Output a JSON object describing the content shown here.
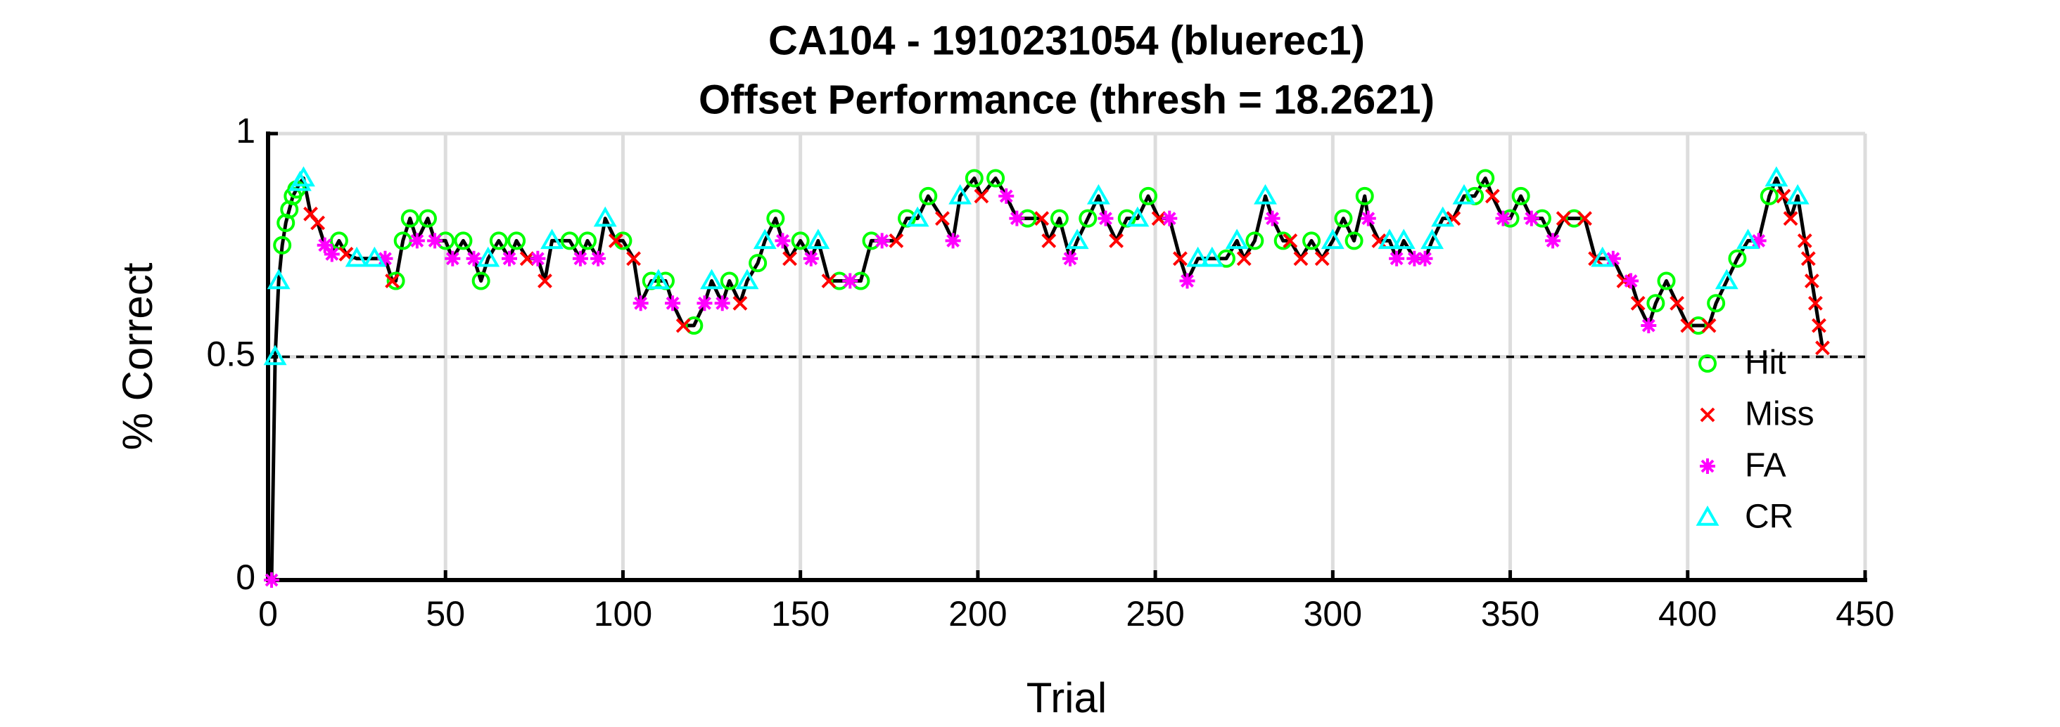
{
  "chart_data": {
    "type": "scatter",
    "title": "CA104 - 1910231054 (bluerec1)",
    "subtitle": "Offset Performance (thresh = 18.2621)",
    "x_label": "Trial",
    "y_label": "% Correct",
    "xlim": [
      0,
      450
    ],
    "xticks": [
      0,
      50,
      100,
      150,
      200,
      250,
      300,
      350,
      400,
      450
    ],
    "ylim": [
      0,
      1
    ],
    "yticks": [
      0,
      0.5,
      1
    ],
    "grid": true,
    "legend_position": "right",
    "reference_line": {
      "value": 0.5,
      "color": "#000000",
      "style": "dashed"
    },
    "line": {
      "color": "#000000",
      "x": [
        1,
        2,
        3,
        4,
        5,
        6,
        7,
        8,
        9,
        10,
        12,
        14,
        16,
        18,
        20,
        22,
        25,
        30,
        33,
        35,
        36,
        38,
        40,
        42,
        45,
        47,
        50,
        52,
        55,
        58,
        60,
        62,
        65,
        68,
        70,
        73,
        76,
        78,
        80,
        85,
        88,
        90,
        93,
        95,
        98,
        100,
        103,
        105,
        108,
        110,
        112,
        114,
        117,
        120,
        123,
        125,
        128,
        130,
        133,
        135,
        138,
        140,
        143,
        145,
        147,
        150,
        153,
        155,
        158,
        161,
        164,
        167,
        170,
        173,
        177,
        180,
        183,
        186,
        190,
        193,
        195,
        199,
        201,
        205,
        208,
        211,
        214,
        218,
        220,
        223,
        226,
        228,
        231,
        234,
        236,
        239,
        242,
        245,
        248,
        251,
        254,
        257,
        259,
        262,
        266,
        270,
        273,
        275,
        278,
        281,
        283,
        286,
        288,
        291,
        294,
        297,
        300,
        303,
        306,
        309,
        310,
        313,
        316,
        318,
        320,
        323,
        326,
        328,
        331,
        334,
        337,
        340,
        343,
        345,
        348,
        350,
        353,
        356,
        359,
        362,
        365,
        368,
        371,
        374,
        376,
        379,
        382,
        384,
        386,
        389,
        391,
        394,
        397,
        400,
        403,
        406,
        408,
        411,
        414,
        417,
        420,
        423,
        425,
        427,
        429,
        431,
        433,
        434,
        435,
        436,
        437,
        438
      ],
      "values": [
        0,
        0.5,
        0.67,
        0.75,
        0.8,
        0.83,
        0.86,
        0.875,
        0.89,
        0.9,
        0.82,
        0.8,
        0.75,
        0.73,
        0.76,
        0.73,
        0.72,
        0.72,
        0.72,
        0.67,
        0.67,
        0.76,
        0.81,
        0.76,
        0.81,
        0.76,
        0.76,
        0.72,
        0.76,
        0.72,
        0.67,
        0.72,
        0.76,
        0.72,
        0.76,
        0.72,
        0.72,
        0.67,
        0.76,
        0.76,
        0.72,
        0.76,
        0.72,
        0.81,
        0.76,
        0.76,
        0.72,
        0.62,
        0.67,
        0.67,
        0.67,
        0.62,
        0.57,
        0.57,
        0.62,
        0.67,
        0.62,
        0.67,
        0.62,
        0.67,
        0.71,
        0.76,
        0.81,
        0.76,
        0.72,
        0.76,
        0.72,
        0.76,
        0.67,
        0.67,
        0.67,
        0.67,
        0.76,
        0.76,
        0.76,
        0.81,
        0.81,
        0.86,
        0.81,
        0.76,
        0.86,
        0.9,
        0.86,
        0.9,
        0.86,
        0.81,
        0.81,
        0.81,
        0.76,
        0.81,
        0.72,
        0.76,
        0.81,
        0.86,
        0.81,
        0.76,
        0.81,
        0.81,
        0.86,
        0.81,
        0.81,
        0.72,
        0.67,
        0.72,
        0.72,
        0.72,
        0.76,
        0.72,
        0.76,
        0.86,
        0.81,
        0.76,
        0.76,
        0.72,
        0.76,
        0.72,
        0.76,
        0.81,
        0.76,
        0.86,
        0.81,
        0.76,
        0.76,
        0.72,
        0.76,
        0.72,
        0.72,
        0.76,
        0.81,
        0.81,
        0.86,
        0.86,
        0.9,
        0.86,
        0.81,
        0.81,
        0.86,
        0.81,
        0.81,
        0.76,
        0.81,
        0.81,
        0.81,
        0.72,
        0.72,
        0.72,
        0.67,
        0.67,
        0.62,
        0.57,
        0.62,
        0.67,
        0.62,
        0.57,
        0.57,
        0.57,
        0.62,
        0.67,
        0.72,
        0.76,
        0.76,
        0.86,
        0.9,
        0.86,
        0.81,
        0.86,
        0.76,
        0.72,
        0.67,
        0.62,
        0.57,
        0.52
      ]
    },
    "series": [
      {
        "name": "Hit",
        "color": "#00ff00",
        "marker": "circle",
        "x": [
          4,
          5,
          6,
          7,
          8,
          20,
          36,
          38,
          40,
          45,
          50,
          55,
          60,
          65,
          70,
          85,
          90,
          100,
          108,
          112,
          120,
          130,
          138,
          143,
          150,
          161,
          167,
          170,
          180,
          186,
          199,
          205,
          214,
          223,
          231,
          242,
          248,
          270,
          278,
          286,
          294,
          303,
          306,
          309,
          340,
          343,
          350,
          353,
          359,
          368,
          391,
          394,
          403,
          408,
          414,
          423
        ],
        "values": [
          0.75,
          0.8,
          0.83,
          0.86,
          0.875,
          0.76,
          0.67,
          0.76,
          0.81,
          0.81,
          0.76,
          0.76,
          0.67,
          0.76,
          0.76,
          0.76,
          0.76,
          0.76,
          0.67,
          0.67,
          0.57,
          0.67,
          0.71,
          0.81,
          0.76,
          0.67,
          0.67,
          0.76,
          0.81,
          0.86,
          0.9,
          0.9,
          0.81,
          0.81,
          0.81,
          0.81,
          0.86,
          0.72,
          0.76,
          0.76,
          0.76,
          0.81,
          0.76,
          0.86,
          0.86,
          0.9,
          0.81,
          0.86,
          0.81,
          0.81,
          0.62,
          0.67,
          0.57,
          0.62,
          0.72,
          0.86
        ]
      },
      {
        "name": "Miss",
        "color": "#ff0000",
        "marker": "x",
        "x": [
          12,
          14,
          22,
          35,
          73,
          78,
          98,
          103,
          117,
          133,
          147,
          158,
          177,
          190,
          201,
          218,
          220,
          239,
          251,
          257,
          275,
          288,
          291,
          297,
          313,
          334,
          345,
          365,
          371,
          374,
          382,
          386,
          397,
          400,
          406,
          427,
          429,
          433,
          434,
          435,
          436,
          437,
          438
        ],
        "values": [
          0.82,
          0.8,
          0.73,
          0.67,
          0.72,
          0.67,
          0.76,
          0.72,
          0.57,
          0.62,
          0.72,
          0.67,
          0.76,
          0.81,
          0.86,
          0.81,
          0.76,
          0.76,
          0.81,
          0.72,
          0.72,
          0.76,
          0.72,
          0.72,
          0.76,
          0.81,
          0.86,
          0.81,
          0.81,
          0.72,
          0.67,
          0.62,
          0.62,
          0.57,
          0.57,
          0.86,
          0.81,
          0.76,
          0.72,
          0.67,
          0.62,
          0.57,
          0.52
        ]
      },
      {
        "name": "FA",
        "color": "#ff00ff",
        "marker": "asterisk",
        "x": [
          1,
          16,
          18,
          33,
          42,
          47,
          52,
          58,
          68,
          76,
          88,
          93,
          105,
          114,
          123,
          128,
          145,
          153,
          164,
          173,
          193,
          208,
          211,
          226,
          236,
          254,
          259,
          283,
          310,
          318,
          323,
          326,
          348,
          356,
          362,
          379,
          384,
          389,
          420
        ],
        "values": [
          0,
          0.75,
          0.73,
          0.72,
          0.76,
          0.76,
          0.72,
          0.72,
          0.72,
          0.72,
          0.72,
          0.72,
          0.62,
          0.62,
          0.62,
          0.62,
          0.76,
          0.72,
          0.67,
          0.76,
          0.76,
          0.86,
          0.81,
          0.72,
          0.81,
          0.81,
          0.67,
          0.81,
          0.81,
          0.72,
          0.72,
          0.72,
          0.81,
          0.81,
          0.76,
          0.72,
          0.67,
          0.57,
          0.76
        ]
      },
      {
        "name": "CR",
        "color": "#00ffff",
        "marker": "triangle",
        "x": [
          2,
          3,
          9,
          10,
          25,
          30,
          62,
          80,
          95,
          110,
          125,
          135,
          140,
          155,
          183,
          195,
          228,
          234,
          245,
          262,
          266,
          273,
          281,
          300,
          316,
          320,
          328,
          331,
          337,
          376,
          411,
          417,
          425,
          431
        ],
        "values": [
          0.5,
          0.67,
          0.89,
          0.9,
          0.72,
          0.72,
          0.72,
          0.76,
          0.81,
          0.67,
          0.67,
          0.67,
          0.76,
          0.76,
          0.81,
          0.86,
          0.76,
          0.86,
          0.81,
          0.72,
          0.72,
          0.76,
          0.86,
          0.76,
          0.76,
          0.76,
          0.76,
          0.81,
          0.86,
          0.72,
          0.67,
          0.76,
          0.9,
          0.86
        ]
      }
    ]
  }
}
